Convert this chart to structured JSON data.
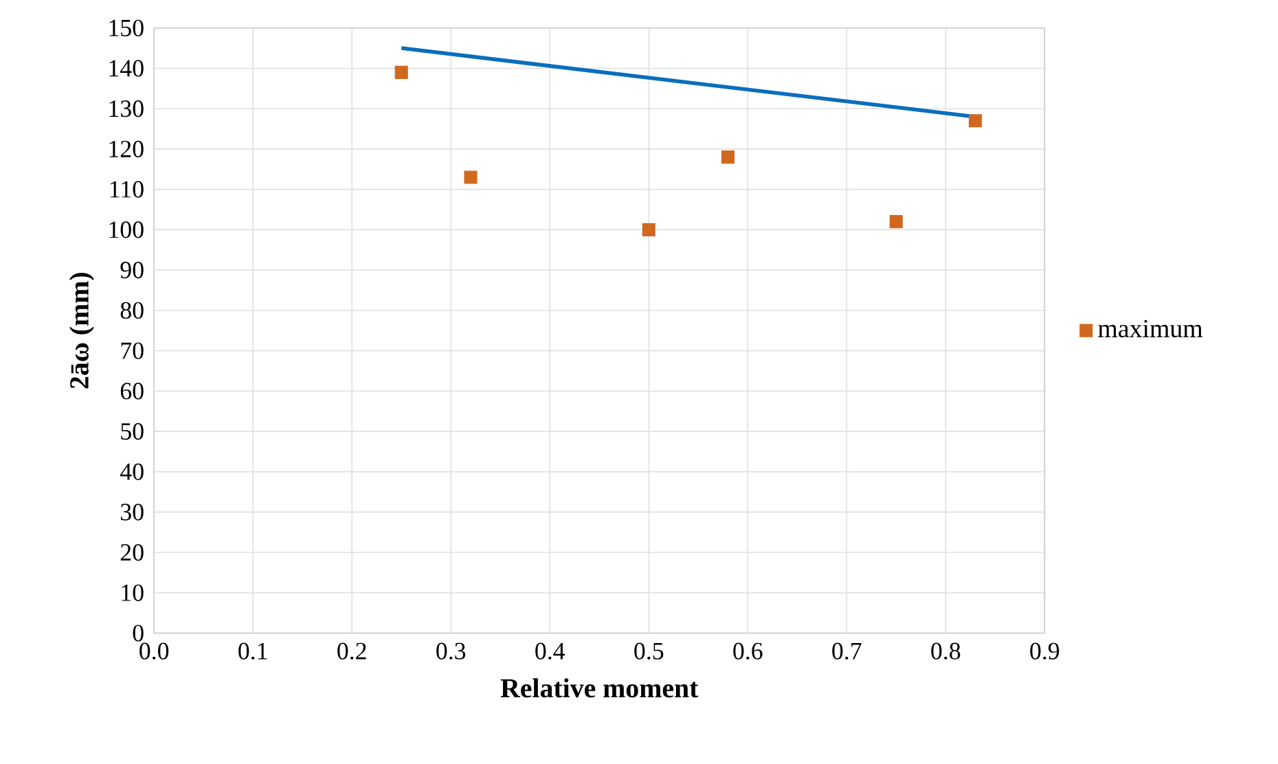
{
  "chart_data": {
    "type": "scatter",
    "xlabel": "Relative moment",
    "ylabel": "2āω (mm)",
    "xlim": [
      0,
      0.9
    ],
    "xticks": [
      {
        "value": 0,
        "label": "0.0"
      },
      0.1,
      0.2,
      0.3,
      0.4,
      0.5,
      0.6,
      0.7,
      0.8,
      0.9
    ],
    "ylim": [
      0,
      150
    ],
    "yticks": [
      0,
      10,
      20,
      30,
      40,
      50,
      60,
      70,
      80,
      90,
      100,
      110,
      120,
      130,
      140,
      150
    ],
    "grid": true,
    "legend": "right",
    "marker": "square",
    "series": [
      {
        "name": "maximum",
        "color": "#d0691f",
        "x": [
          0.25,
          0.32,
          0.5,
          0.58,
          0.75,
          0.83
        ],
        "values": [
          139,
          113,
          100,
          118,
          102,
          127
        ]
      },
      {
        "type": "line",
        "color": "#0a6ebd",
        "x": [
          0.25,
          0.83
        ],
        "values": [
          145,
          128
        ],
        "marker": "none",
        "line_style": "solid"
      }
    ]
  }
}
